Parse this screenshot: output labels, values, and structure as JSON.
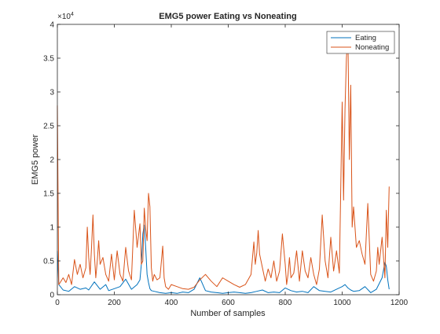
{
  "chart_data": {
    "type": "line",
    "title": "EMG5 power Eating vs Noneating",
    "xlabel": "Number of samples",
    "ylabel": "EMG5 power",
    "xlim": [
      0,
      1200
    ],
    "ylim": [
      0,
      40000
    ],
    "y_exponent_label": "×10",
    "y_exponent_power": "4",
    "xticks": [
      0,
      200,
      400,
      600,
      800,
      1000,
      1200
    ],
    "yticks": [
      0,
      0.5,
      1,
      1.5,
      2,
      2.5,
      3,
      3.5,
      4
    ],
    "xtick_labels": [
      "0",
      "200",
      "400",
      "600",
      "800",
      "1000",
      "1200"
    ],
    "ytick_labels": [
      "0",
      "0.5",
      "1",
      "1.5",
      "2",
      "2.5",
      "3",
      "3.5",
      "4"
    ],
    "grid": false,
    "legend_position": "top-right",
    "series": [
      {
        "name": "Eating",
        "color": "#0072BD",
        "x": [
          0,
          5,
          20,
          40,
          60,
          80,
          100,
          110,
          130,
          150,
          170,
          180,
          200,
          220,
          240,
          260,
          280,
          290,
          295,
          300,
          305,
          310,
          315,
          320,
          325,
          330,
          340,
          360,
          380,
          400,
          420,
          440,
          460,
          480,
          500,
          520,
          540,
          560,
          580,
          600,
          620,
          640,
          660,
          680,
          700,
          720,
          740,
          760,
          780,
          800,
          820,
          840,
          860,
          880,
          900,
          920,
          940,
          960,
          980,
          1000,
          1010,
          1020,
          1030,
          1040,
          1060,
          1080,
          1100,
          1120,
          1140,
          1150,
          1155,
          1160,
          1165
        ],
        "values": [
          6500,
          1500,
          700,
          500,
          1200,
          800,
          1000,
          700,
          1900,
          800,
          1500,
          600,
          900,
          1200,
          2300,
          800,
          1500,
          2200,
          4500,
          9000,
          10300,
          7000,
          3000,
          1800,
          900,
          600,
          500,
          300,
          200,
          300,
          200,
          400,
          300,
          800,
          2500,
          600,
          400,
          300,
          200,
          300,
          400,
          300,
          200,
          300,
          500,
          700,
          300,
          400,
          300,
          1000,
          600,
          400,
          500,
          300,
          1200,
          600,
          500,
          400,
          800,
          1200,
          1500,
          1000,
          700,
          500,
          600,
          1200,
          300,
          800,
          2500,
          4800,
          4200,
          2200,
          800
        ]
      },
      {
        "name": "Noneating",
        "color": "#D95319",
        "x": [
          0,
          5,
          10,
          20,
          30,
          40,
          50,
          60,
          70,
          80,
          90,
          100,
          105,
          110,
          115,
          120,
          125,
          130,
          135,
          140,
          145,
          150,
          160,
          170,
          180,
          190,
          200,
          210,
          220,
          230,
          240,
          250,
          260,
          270,
          280,
          290,
          295,
          300,
          305,
          310,
          315,
          320,
          325,
          330,
          335,
          340,
          350,
          360,
          365,
          370,
          375,
          380,
          390,
          400,
          420,
          440,
          460,
          480,
          500,
          520,
          540,
          560,
          580,
          600,
          620,
          640,
          660,
          680,
          690,
          695,
          700,
          705,
          710,
          720,
          730,
          740,
          750,
          760,
          770,
          780,
          790,
          800,
          805,
          810,
          815,
          820,
          830,
          840,
          850,
          860,
          870,
          880,
          890,
          900,
          910,
          920,
          930,
          940,
          950,
          960,
          970,
          980,
          990,
          1000,
          1005,
          1010,
          1015,
          1020,
          1025,
          1030,
          1035,
          1040,
          1050,
          1060,
          1070,
          1080,
          1090,
          1100,
          1110,
          1120,
          1125,
          1130,
          1140,
          1150,
          1155,
          1160,
          1165
        ],
        "values": [
          28000,
          1500,
          1800,
          2500,
          1800,
          3000,
          1500,
          5200,
          3000,
          4500,
          2500,
          4000,
          10000,
          5500,
          3000,
          7000,
          11800,
          6000,
          2500,
          5000,
          8000,
          4500,
          5500,
          3000,
          2000,
          6000,
          2200,
          6500,
          3000,
          2000,
          7000,
          3500,
          2200,
          12500,
          7000,
          10500,
          4500,
          5000,
          12800,
          9800,
          8000,
          15000,
          13000,
          4000,
          2000,
          3000,
          2200,
          2500,
          4800,
          7200,
          2500,
          1200,
          800,
          1500,
          1200,
          900,
          800,
          1100,
          2200,
          3000,
          2000,
          1200,
          2500,
          2000,
          1500,
          1100,
          1500,
          3000,
          7800,
          4500,
          6200,
          9500,
          6000,
          4000,
          2000,
          3800,
          2500,
          5000,
          2000,
          3500,
          9000,
          4500,
          1500,
          3000,
          5500,
          2500,
          3200,
          6500,
          2000,
          6500,
          3500,
          2500,
          5500,
          3000,
          1500,
          3800,
          11800,
          5000,
          2500,
          8500,
          3500,
          6500,
          3200,
          28500,
          14000,
          27500,
          35000,
          38500,
          20000,
          31000,
          10000,
          13000,
          7000,
          8000,
          6000,
          4500,
          13500,
          3000,
          2000,
          3500,
          7000,
          4500,
          8500,
          2500,
          12500,
          7000,
          16000
        ]
      }
    ]
  }
}
